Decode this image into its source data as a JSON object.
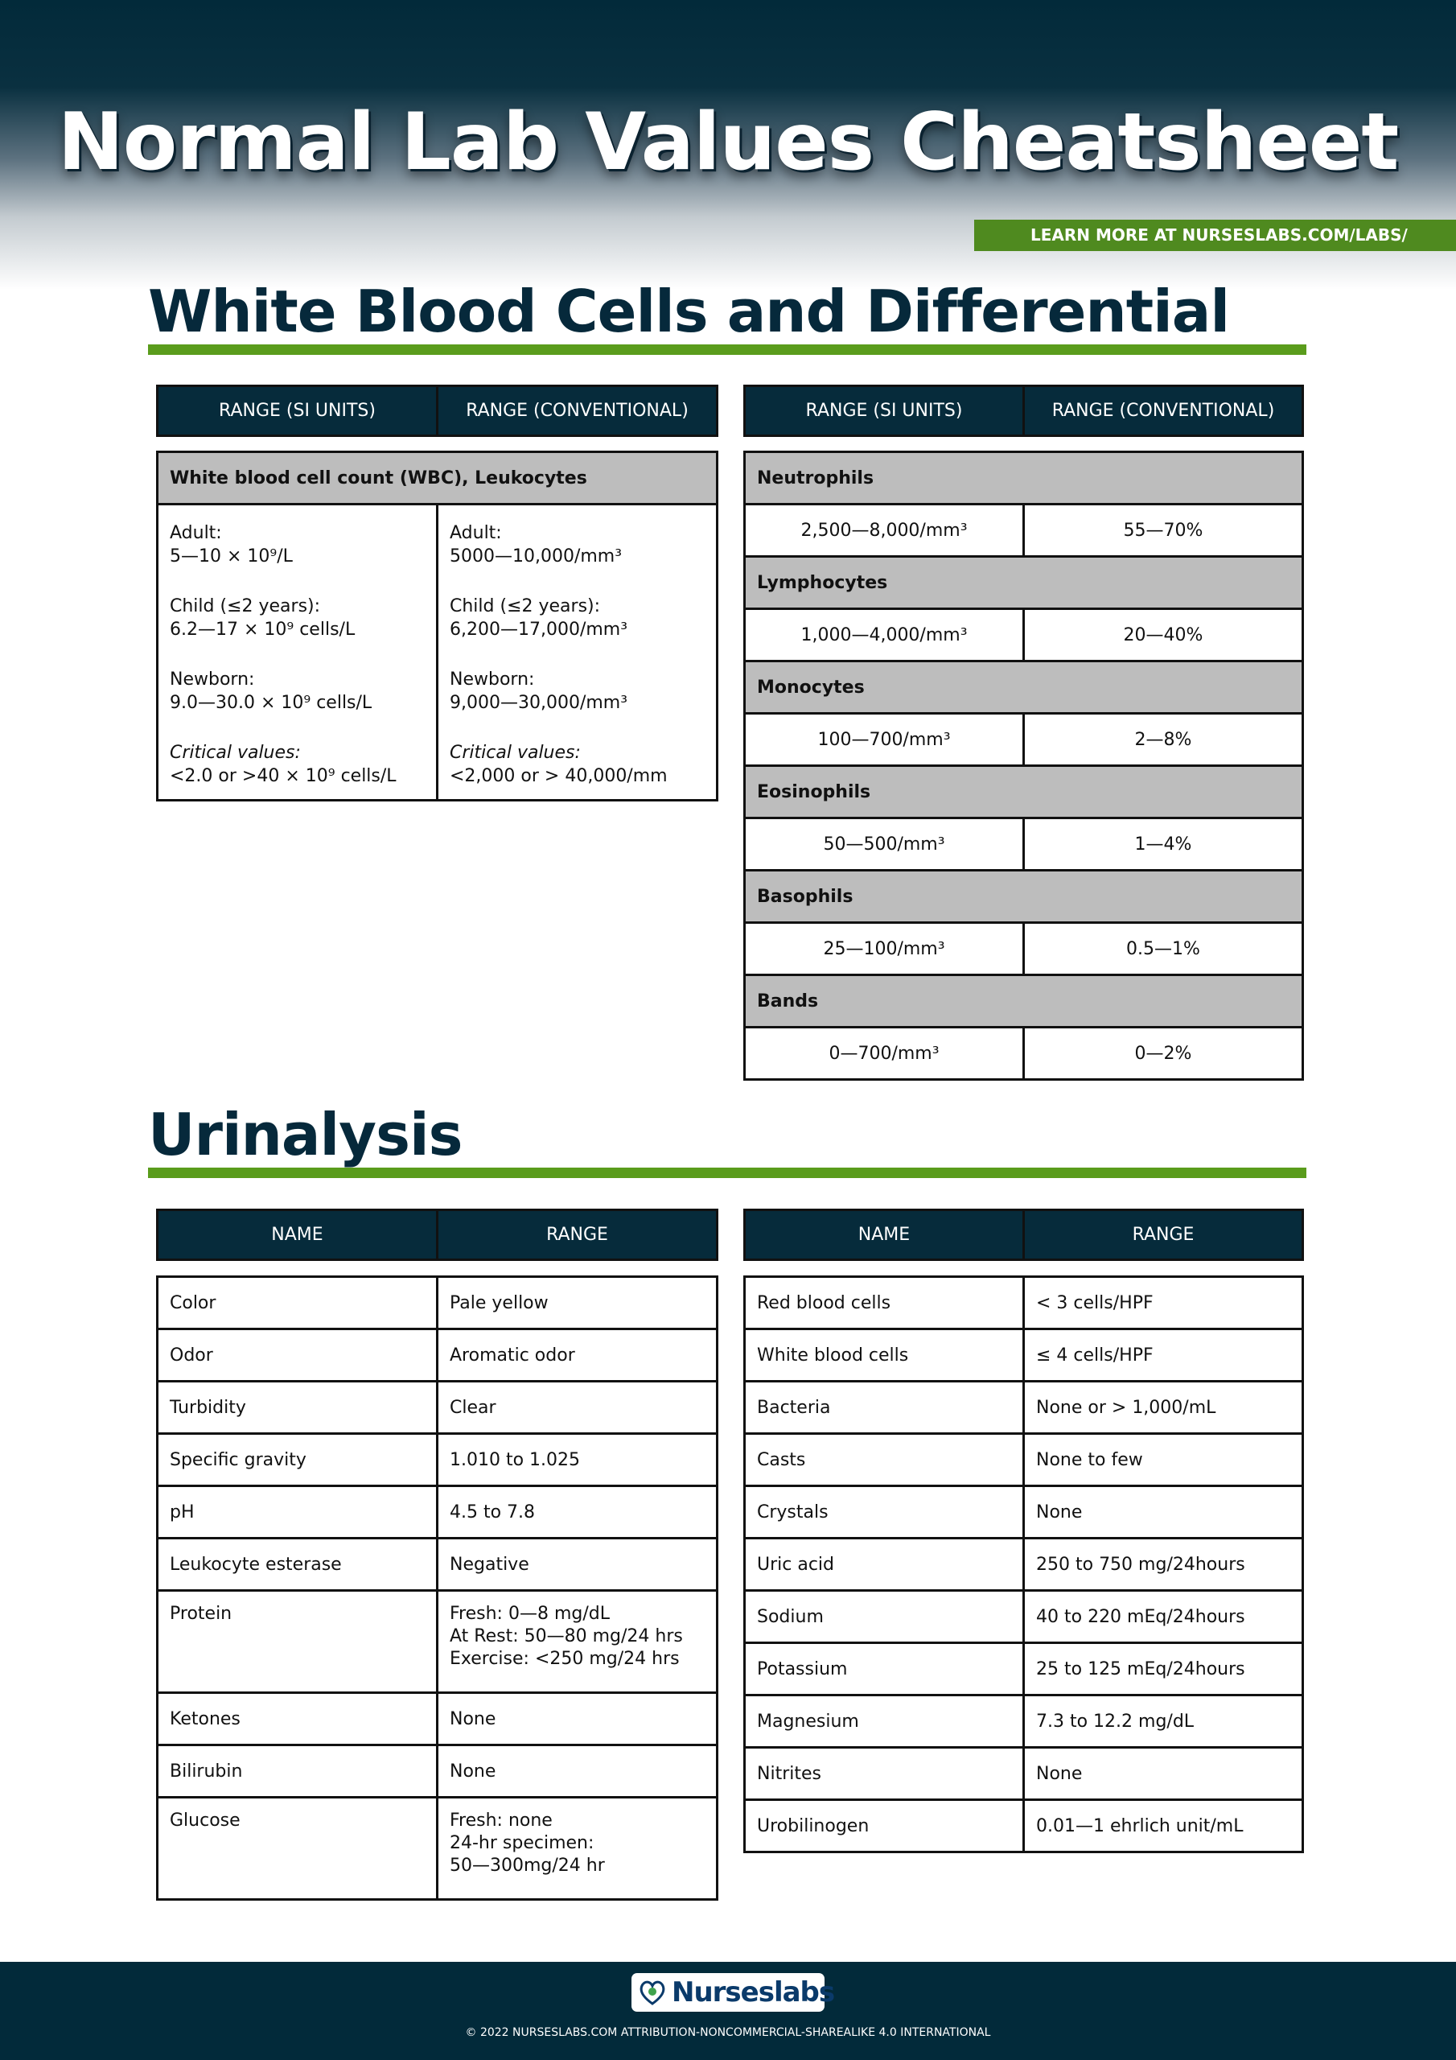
{
  "title": "Normal Lab Values Cheatsheet",
  "banner": {
    "prefix": "LEARN MORE AT ",
    "link": "NURSESLABS.COM/LABS/"
  },
  "colors": {
    "navy": "#062b3b",
    "green": "#5a9c1c",
    "gray": "#bdbdbd"
  },
  "wbc": {
    "heading": "White Blood Cells and Differential",
    "headers": [
      "RANGE (SI UNITS)",
      "RANGE (CONVENTIONAL)"
    ],
    "group": "White blood cell count (WBC), Leukocytes",
    "si": [
      [
        "Adult:",
        "5—10 × 10⁹/L"
      ],
      [
        "Child (≤2 years):",
        "6.2—17 × 10⁹ cells/L"
      ],
      [
        "Newborn:",
        "9.0—30.0 × 10⁹ cells/L"
      ],
      [
        "Critical values:",
        "<2.0 or >40 × 10⁹ cells/L"
      ]
    ],
    "conv": [
      [
        "Adult:",
        "5000—10,000/mm³"
      ],
      [
        "Child (≤2 years):",
        "6,200—17,000/mm³"
      ],
      [
        "Newborn:",
        "9,000—30,000/mm³"
      ],
      [
        "Critical values:",
        "<2,000 or > 40,000/mm"
      ]
    ],
    "differential": [
      {
        "name": "Neutrophils",
        "si": "2,500—8,000/mm³",
        "conv": "55—70%"
      },
      {
        "name": "Lymphocytes",
        "si": "1,000—4,000/mm³",
        "conv": "20—40%"
      },
      {
        "name": "Monocytes",
        "si": "100—700/mm³",
        "conv": "2—8%"
      },
      {
        "name": "Eosinophils",
        "si": "50—500/mm³",
        "conv": "1—4%"
      },
      {
        "name": "Basophils",
        "si": "25—100/mm³",
        "conv": "0.5—1%"
      },
      {
        "name": "Bands",
        "si": "0—700/mm³",
        "conv": "0—2%"
      }
    ]
  },
  "urinalysis": {
    "heading": "Urinalysis",
    "headers": [
      "NAME",
      "RANGE"
    ],
    "left": [
      [
        "Color",
        "Pale yellow"
      ],
      [
        "Odor",
        "Aromatic odor"
      ],
      [
        "Turbidity",
        "Clear"
      ],
      [
        "Specific gravity",
        "1.010 to 1.025"
      ],
      [
        "pH",
        "4.5 to 7.8"
      ],
      [
        "Leukocyte esterase",
        "Negative"
      ],
      [
        "Protein",
        "Fresh: 0—8 mg/dL\nAt Rest: 50—80 mg/24 hrs\nExercise: <250 mg/24 hrs"
      ],
      [
        "Ketones",
        "None"
      ],
      [
        "Bilirubin",
        "None"
      ],
      [
        "Glucose",
        "Fresh: none\n24-hr specimen:\n50—300mg/24 hr"
      ]
    ],
    "right": [
      [
        "Red blood cells",
        "< 3 cells/HPF"
      ],
      [
        "White blood cells",
        "≤ 4 cells/HPF"
      ],
      [
        "Bacteria",
        "None or > 1,000/mL"
      ],
      [
        "Casts",
        "None to few"
      ],
      [
        "Crystals",
        "None"
      ],
      [
        "Uric acid",
        "250 to 750 mg/24hours"
      ],
      [
        "Sodium",
        "40 to 220 mEq/24hours"
      ],
      [
        "Potassium",
        "25 to 125 mEq/24hours"
      ],
      [
        "Magnesium",
        "7.3 to 12.2 mg/dL"
      ],
      [
        "Nitrites",
        "None"
      ],
      [
        "Urobilinogen",
        "0.01—1 ehrlich unit/mL"
      ]
    ]
  },
  "footer": {
    "logo": "Nurseslabs",
    "copyright": "© 2022 NURSESLABS.COM ATTRIBUTION-NONCOMMERCIAL-SHAREALIKE 4.0 INTERNATIONAL"
  }
}
